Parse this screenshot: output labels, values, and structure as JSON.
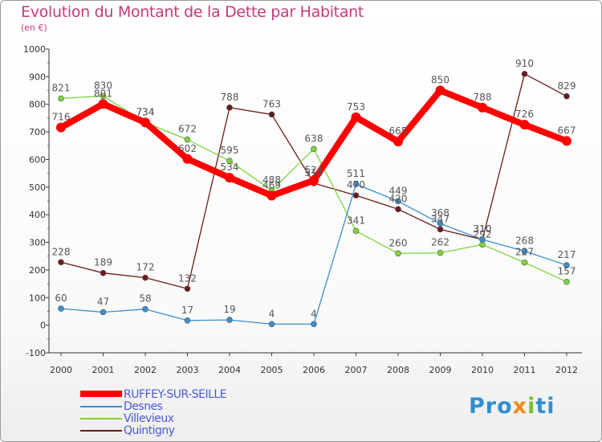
{
  "title": "Evolution du Montant de la Dette par Habitant",
  "subtitle": "(en €)",
  "logo": "Proxiti",
  "chart_data": {
    "type": "line",
    "x": [
      "2000",
      "2001",
      "2002",
      "2003",
      "2004",
      "2005",
      "2006",
      "2007",
      "2008",
      "2009",
      "2010",
      "2011",
      "2012"
    ],
    "ylim": [
      -100,
      1000
    ],
    "yticks": [
      -100,
      0,
      100,
      200,
      300,
      400,
      500,
      600,
      700,
      800,
      900,
      1000
    ],
    "grid": false,
    "legend_position": "bottom-left",
    "series": [
      {
        "name": "RUFFEY-SUR-SEILLE",
        "color": "#ff0000",
        "values": [
          716,
          801,
          734,
          602,
          534,
          469,
          524,
          753,
          665,
          850,
          788,
          726,
          667
        ]
      },
      {
        "name": "Desnes",
        "color": "#3a8fd0",
        "values": [
          60,
          47,
          58,
          17,
          19,
          4,
          4,
          511,
          449,
          368,
          310,
          268,
          217
        ]
      },
      {
        "name": "Villevieux",
        "color": "#7ed43a",
        "values": [
          821,
          830,
          734,
          672,
          595,
          488,
          638,
          341,
          260,
          262,
          292,
          227,
          157
        ]
      },
      {
        "name": "Quintigny",
        "color": "#6b1a1a",
        "values": [
          228,
          189,
          172,
          132,
          788,
          763,
          514,
          470,
          420,
          347,
          310,
          910,
          829
        ]
      }
    ]
  }
}
